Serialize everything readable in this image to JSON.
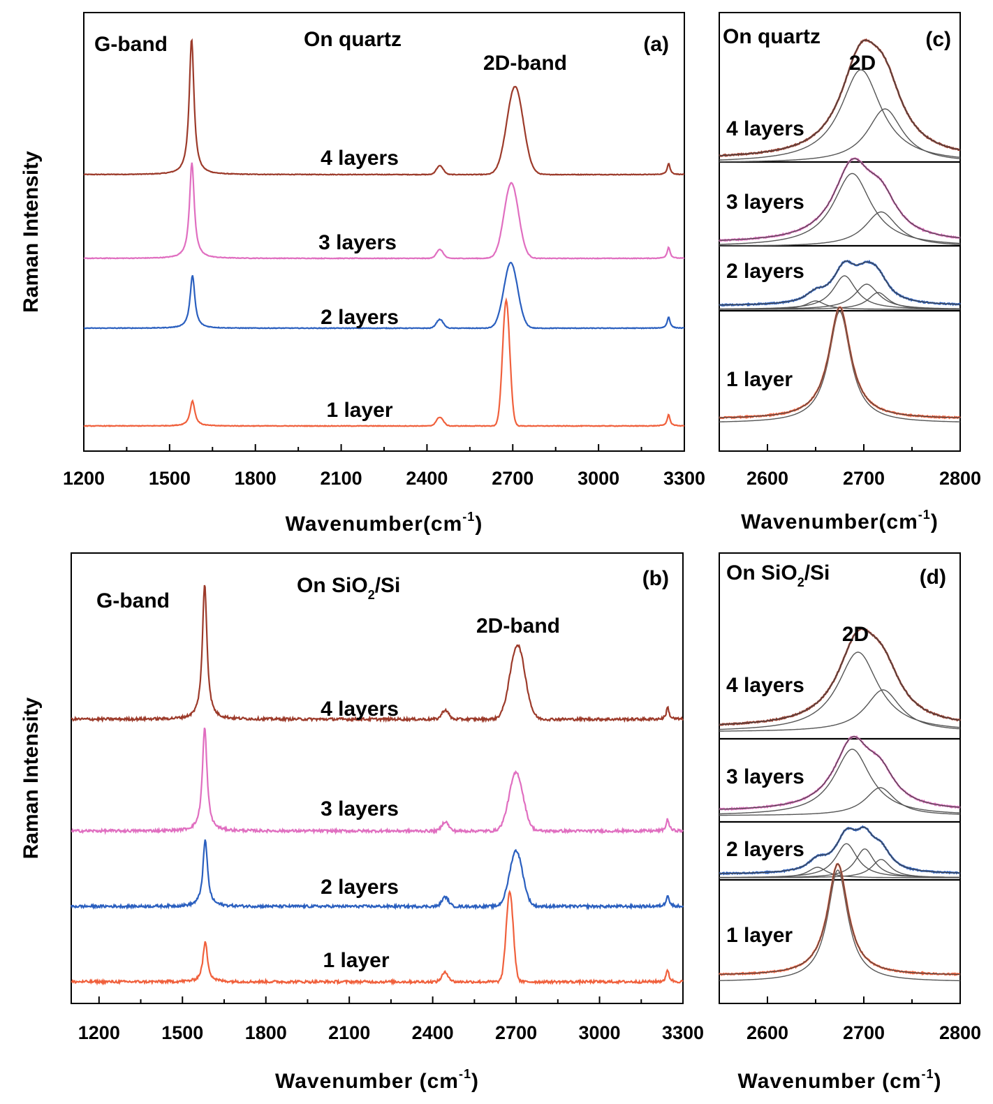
{
  "chart_data": [
    {
      "id": "a",
      "type": "line",
      "panel_label": "(a)",
      "substrate_main": "On quartz",
      "substrate_sub": "",
      "substrate_tail": "",
      "band_labels": [
        "G-band",
        "2D-band"
      ],
      "ylabel": "Raman Intensity",
      "xlabel_main": "Wavenumber(cm",
      "xlabel_sup": "-1",
      "xlabel_tail": ")",
      "xlim": [
        1200,
        3300
      ],
      "xticks": [
        1200,
        1500,
        1800,
        2100,
        2400,
        2700,
        3000,
        3300
      ],
      "yticks_shown": false,
      "grid": false,
      "legend": "none",
      "peaks": {
        "D_prime_like_2450": 2440,
        "G": 1580,
        "2D_range": [
          2670,
          2710
        ],
        "2D_prime": 3245
      },
      "series": [
        {
          "name": "4 layers",
          "color": "#9c3a2a",
          "G_height": 5.4,
          "G_pos": 1577,
          "D2_height": 3.5,
          "D2_pos": 2708,
          "D2_width": 32
        },
        {
          "name": "3 layers",
          "color": "#e06ec0",
          "G_height": 3.8,
          "G_pos": 1578,
          "D2_height": 3.0,
          "D2_pos": 2695,
          "D2_width": 28
        },
        {
          "name": "2 layers",
          "color": "#2a5fbf",
          "G_height": 2.1,
          "G_pos": 1580,
          "D2_height": 2.6,
          "D2_pos": 2693,
          "D2_width": 27
        },
        {
          "name": "1 layer",
          "color": "#f0603c",
          "G_height": 1.0,
          "G_pos": 1580,
          "D2_height": 5.0,
          "D2_pos": 2677,
          "D2_width": 14
        }
      ]
    },
    {
      "id": "b",
      "type": "line",
      "panel_label": "(b)",
      "substrate_main": "On SiO",
      "substrate_sub": "2",
      "substrate_tail": "/Si",
      "band_labels": [
        "G-band",
        "2D-band"
      ],
      "ylabel": "Raman Intensity",
      "xlabel_main": "Wavenumber (cm",
      "xlabel_sup": "-1",
      "xlabel_tail": ")",
      "xlim": [
        1100,
        3300
      ],
      "xticks": [
        1200,
        1500,
        1800,
        2100,
        2400,
        2700,
        3000,
        3300
      ],
      "yticks_shown": false,
      "grid": false,
      "legend": "none",
      "series": [
        {
          "name": "4 layers",
          "color": "#9c3a2a",
          "G_height": 5.1,
          "G_pos": 1580,
          "D2_height": 2.8,
          "D2_pos": 2705,
          "D2_width": 30
        },
        {
          "name": "3 layers",
          "color": "#e06ec0",
          "G_height": 3.9,
          "G_pos": 1580,
          "D2_height": 2.2,
          "D2_pos": 2700,
          "D2_width": 28
        },
        {
          "name": "2 layers",
          "color": "#2a5fbf",
          "G_height": 2.5,
          "G_pos": 1582,
          "D2_height": 2.1,
          "D2_pos": 2700,
          "D2_width": 26
        },
        {
          "name": "1 layer",
          "color": "#f0603c",
          "G_height": 1.5,
          "G_pos": 1582,
          "D2_height": 3.4,
          "D2_pos": 2677,
          "D2_width": 14
        }
      ]
    },
    {
      "id": "c",
      "type": "line",
      "panel_label": "(c)",
      "substrate_main": "On quartz",
      "substrate_sub": "",
      "substrate_tail": "",
      "band_label": "2D",
      "xlabel_main": "Wavenumber(cm",
      "xlabel_sup": "-1",
      "xlabel_tail": ")",
      "xlim": [
        2550,
        2800
      ],
      "xticks": [
        2600,
        2700,
        2800
      ],
      "grid": false,
      "legend": "none",
      "series": [
        {
          "name": "4 layers",
          "color": "#9c3a2a",
          "components": [
            {
              "center": 2697,
              "width": 30,
              "height": 0.95
            },
            {
              "center": 2722,
              "width": 26,
              "height": 0.55
            }
          ]
        },
        {
          "name": "3 layers",
          "color": "#e06ec0",
          "components": [
            {
              "center": 2688,
              "width": 28,
              "height": 0.95
            },
            {
              "center": 2718,
              "width": 24,
              "height": 0.45
            }
          ]
        },
        {
          "name": "2 layers",
          "color": "#2a5fbf",
          "components": [
            {
              "center": 2650,
              "width": 14,
              "height": 0.15
            },
            {
              "center": 2680,
              "width": 17,
              "height": 0.6
            },
            {
              "center": 2703,
              "width": 18,
              "height": 0.45
            },
            {
              "center": 2715,
              "width": 15,
              "height": 0.3
            }
          ]
        },
        {
          "name": "1 layer",
          "color": "#f0603c",
          "components": [
            {
              "center": 2675,
              "width": 16,
              "height": 1.0
            }
          ]
        }
      ]
    },
    {
      "id": "d",
      "type": "line",
      "panel_label": "(d)",
      "substrate_main": "On SiO",
      "substrate_sub": "2",
      "substrate_tail": "/Si",
      "band_label": "2D",
      "xlabel_main": "Wavenumber (cm",
      "xlabel_sup": "-1",
      "xlabel_tail": ")",
      "xlim": [
        2550,
        2800
      ],
      "xticks": [
        2600,
        2700,
        2800
      ],
      "grid": false,
      "legend": "none",
      "series": [
        {
          "name": "4 layers",
          "color": "#9c3a2a",
          "components": [
            {
              "center": 2694,
              "width": 30,
              "height": 0.95
            },
            {
              "center": 2720,
              "width": 26,
              "height": 0.5
            }
          ]
        },
        {
          "name": "3 layers",
          "color": "#e06ec0",
          "components": [
            {
              "center": 2688,
              "width": 27,
              "height": 0.95
            },
            {
              "center": 2717,
              "width": 22,
              "height": 0.4
            }
          ]
        },
        {
          "name": "2 layers",
          "color": "#2a5fbf",
          "components": [
            {
              "center": 2652,
              "width": 14,
              "height": 0.2
            },
            {
              "center": 2682,
              "width": 16,
              "height": 0.65
            },
            {
              "center": 2701,
              "width": 14,
              "height": 0.55
            },
            {
              "center": 2718,
              "width": 14,
              "height": 0.35
            }
          ]
        },
        {
          "name": "1 layer",
          "color": "#f0603c",
          "components": [
            {
              "center": 2673,
              "width": 15,
              "height": 1.0
            }
          ]
        }
      ]
    }
  ]
}
